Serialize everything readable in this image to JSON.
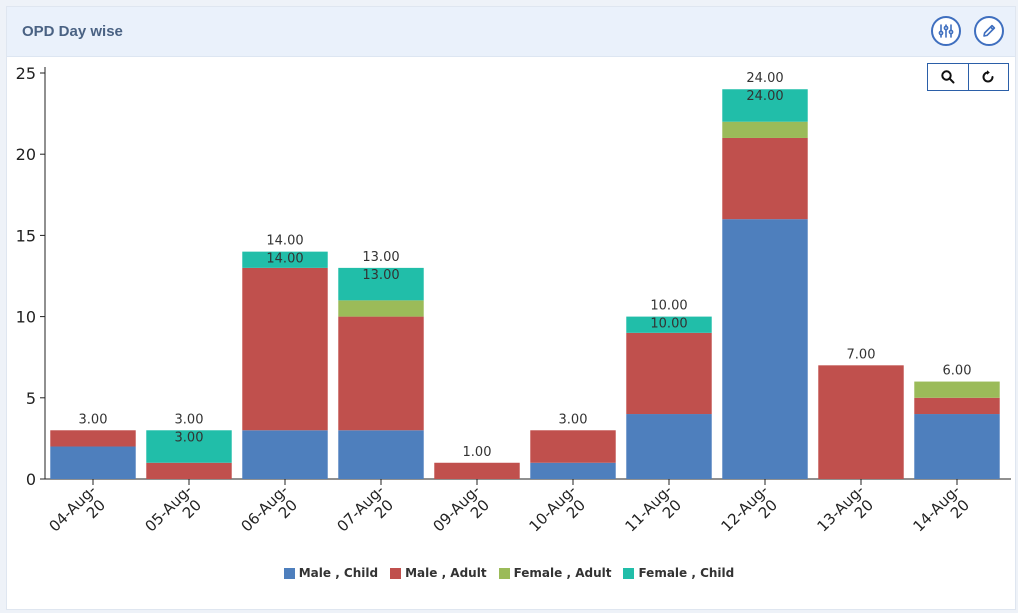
{
  "card": {
    "title": "OPD Day wise",
    "filter_icon": "sliders-icon",
    "edit_icon": "pencil-icon",
    "zoom_icon": "magnifier-icon",
    "reset_icon": "refresh-icon"
  },
  "colors": {
    "Male , Child": "#4e7fbd",
    "Male , Adult": "#c0504d",
    "Female , Adult": "#9bbb59",
    "Female , Child": "#21bea9"
  },
  "chart_data": {
    "type": "bar",
    "stacked": true,
    "categories": [
      "04-Aug-20",
      "05-Aug-20",
      "06-Aug-20",
      "07-Aug-20",
      "09-Aug-20",
      "10-Aug-20",
      "11-Aug-20",
      "12-Aug-20",
      "13-Aug-20",
      "14-Aug-20"
    ],
    "series": [
      {
        "name": "Male , Child",
        "values": [
          2,
          0,
          3,
          3,
          0,
          1,
          4,
          16,
          0,
          4
        ]
      },
      {
        "name": "Male , Adult",
        "values": [
          1,
          1,
          10,
          7,
          1,
          2,
          5,
          5,
          7,
          1
        ]
      },
      {
        "name": "Female , Adult",
        "values": [
          0,
          0,
          0,
          1,
          0,
          0,
          0,
          1,
          0,
          1
        ]
      },
      {
        "name": "Female , Child",
        "values": [
          0,
          2,
          1,
          2,
          0,
          0,
          1,
          2,
          0,
          0
        ]
      }
    ],
    "totals": [
      3,
      3,
      14,
      13,
      1,
      3,
      10,
      24,
      7,
      6
    ],
    "total_labels": [
      "3.00",
      "3.00",
      "14.00",
      "13.00",
      "1.00",
      "3.00",
      "10.00",
      "24.00",
      "7.00",
      "6.00"
    ],
    "inner_labels": [
      "",
      "3.00",
      "14.00",
      "13.00",
      "",
      "",
      "10.00",
      "24.00",
      "",
      ""
    ],
    "ylim": [
      0,
      25
    ],
    "yticks": [
      0,
      5,
      10,
      15,
      20,
      25
    ],
    "title": "",
    "xlabel": "",
    "ylabel": "",
    "legend_position": "bottom",
    "grid": false
  }
}
